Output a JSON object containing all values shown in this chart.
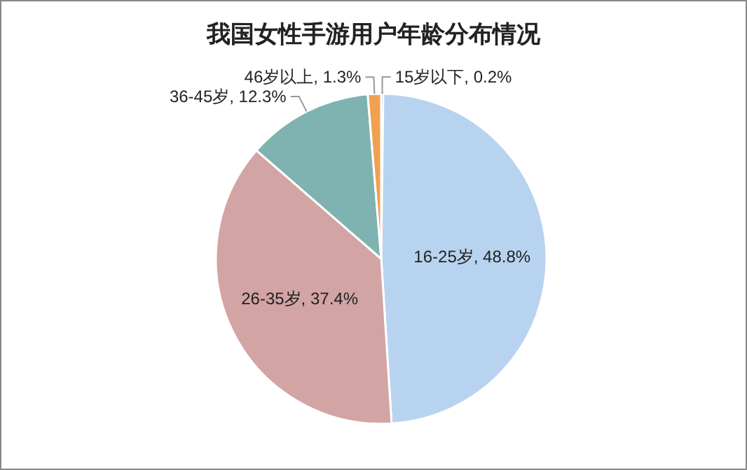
{
  "chart_data": {
    "type": "pie",
    "title": "我国女性手游用户年龄分布情况",
    "categories": [
      "15岁以下",
      "16-25岁",
      "26-35岁",
      "36-45岁",
      "46岁以上"
    ],
    "values": [
      0.2,
      48.8,
      37.4,
      12.3,
      1.3
    ],
    "colors": [
      "#4472c4",
      "#b8d3ef",
      "#d3a4a4",
      "#7eb3b1",
      "#f0a050"
    ],
    "value_labels": [
      ", 0.2%",
      ", 48.8%",
      ", 37.4%",
      ", 12.3%",
      ", 1.3%"
    ]
  }
}
